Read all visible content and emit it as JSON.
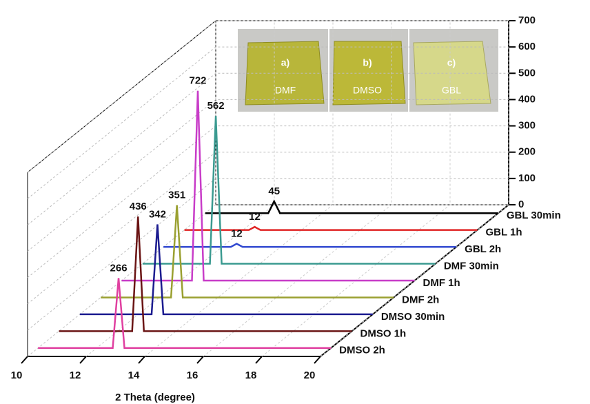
{
  "chart_data": {
    "type": "waterfall",
    "xlabel": "2 Theta (degree)",
    "xlim": [
      10,
      20
    ],
    "xticks": [
      10,
      12,
      14,
      16,
      18,
      20
    ],
    "zlim": [
      0,
      700
    ],
    "zticks": [
      0,
      100,
      200,
      300,
      400,
      500,
      600,
      700
    ],
    "grid": true,
    "series": [
      {
        "name": "GBL 30min",
        "color": "#000000",
        "x": [
          10,
          12.15,
          12.35,
          12.55,
          20
        ],
        "values": [
          0,
          0,
          45,
          0,
          0
        ]
      },
      {
        "name": "GBL 1h",
        "color": "#e02424",
        "x": [
          10,
          12.2,
          12.4,
          12.6,
          20
        ],
        "values": [
          0,
          0,
          12,
          0,
          0
        ]
      },
      {
        "name": "GBL 2h",
        "color": "#3048d0",
        "x": [
          10,
          12.3,
          12.5,
          12.7,
          20
        ],
        "values": [
          0,
          0,
          12,
          0,
          0
        ]
      },
      {
        "name": "DMF 30min",
        "color": "#3a9a90",
        "x": [
          10,
          12.3,
          12.5,
          12.7,
          20
        ],
        "values": [
          0,
          0,
          562,
          0,
          0
        ]
      },
      {
        "name": "DMF 1h",
        "color": "#c83cc8",
        "x": [
          10,
          12.4,
          12.6,
          12.8,
          20
        ],
        "values": [
          0,
          0,
          722,
          0,
          0
        ]
      },
      {
        "name": "DMF 2h",
        "color": "#9aa030",
        "x": [
          10,
          12.4,
          12.6,
          12.8,
          20
        ],
        "values": [
          0,
          0,
          351,
          0,
          0
        ]
      },
      {
        "name": "DMSO 30min",
        "color": "#1c1c90",
        "x": [
          10,
          12.45,
          12.65,
          12.85,
          20
        ],
        "values": [
          0,
          0,
          342,
          0,
          0
        ]
      },
      {
        "name": "DMSO 1h",
        "color": "#6a1414",
        "x": [
          10,
          12.5,
          12.7,
          12.9,
          20
        ],
        "values": [
          0,
          0,
          436,
          0,
          0
        ]
      },
      {
        "name": "DMSO 2h",
        "color": "#e040a0",
        "x": [
          10,
          12.55,
          12.75,
          12.95,
          20
        ],
        "values": [
          0,
          0,
          266,
          0,
          0
        ]
      }
    ],
    "inset": [
      {
        "letter": "a)",
        "solvent": "DMF"
      },
      {
        "letter": "b)",
        "solvent": "DMSO"
      },
      {
        "letter": "c)",
        "solvent": "GBL"
      }
    ]
  }
}
